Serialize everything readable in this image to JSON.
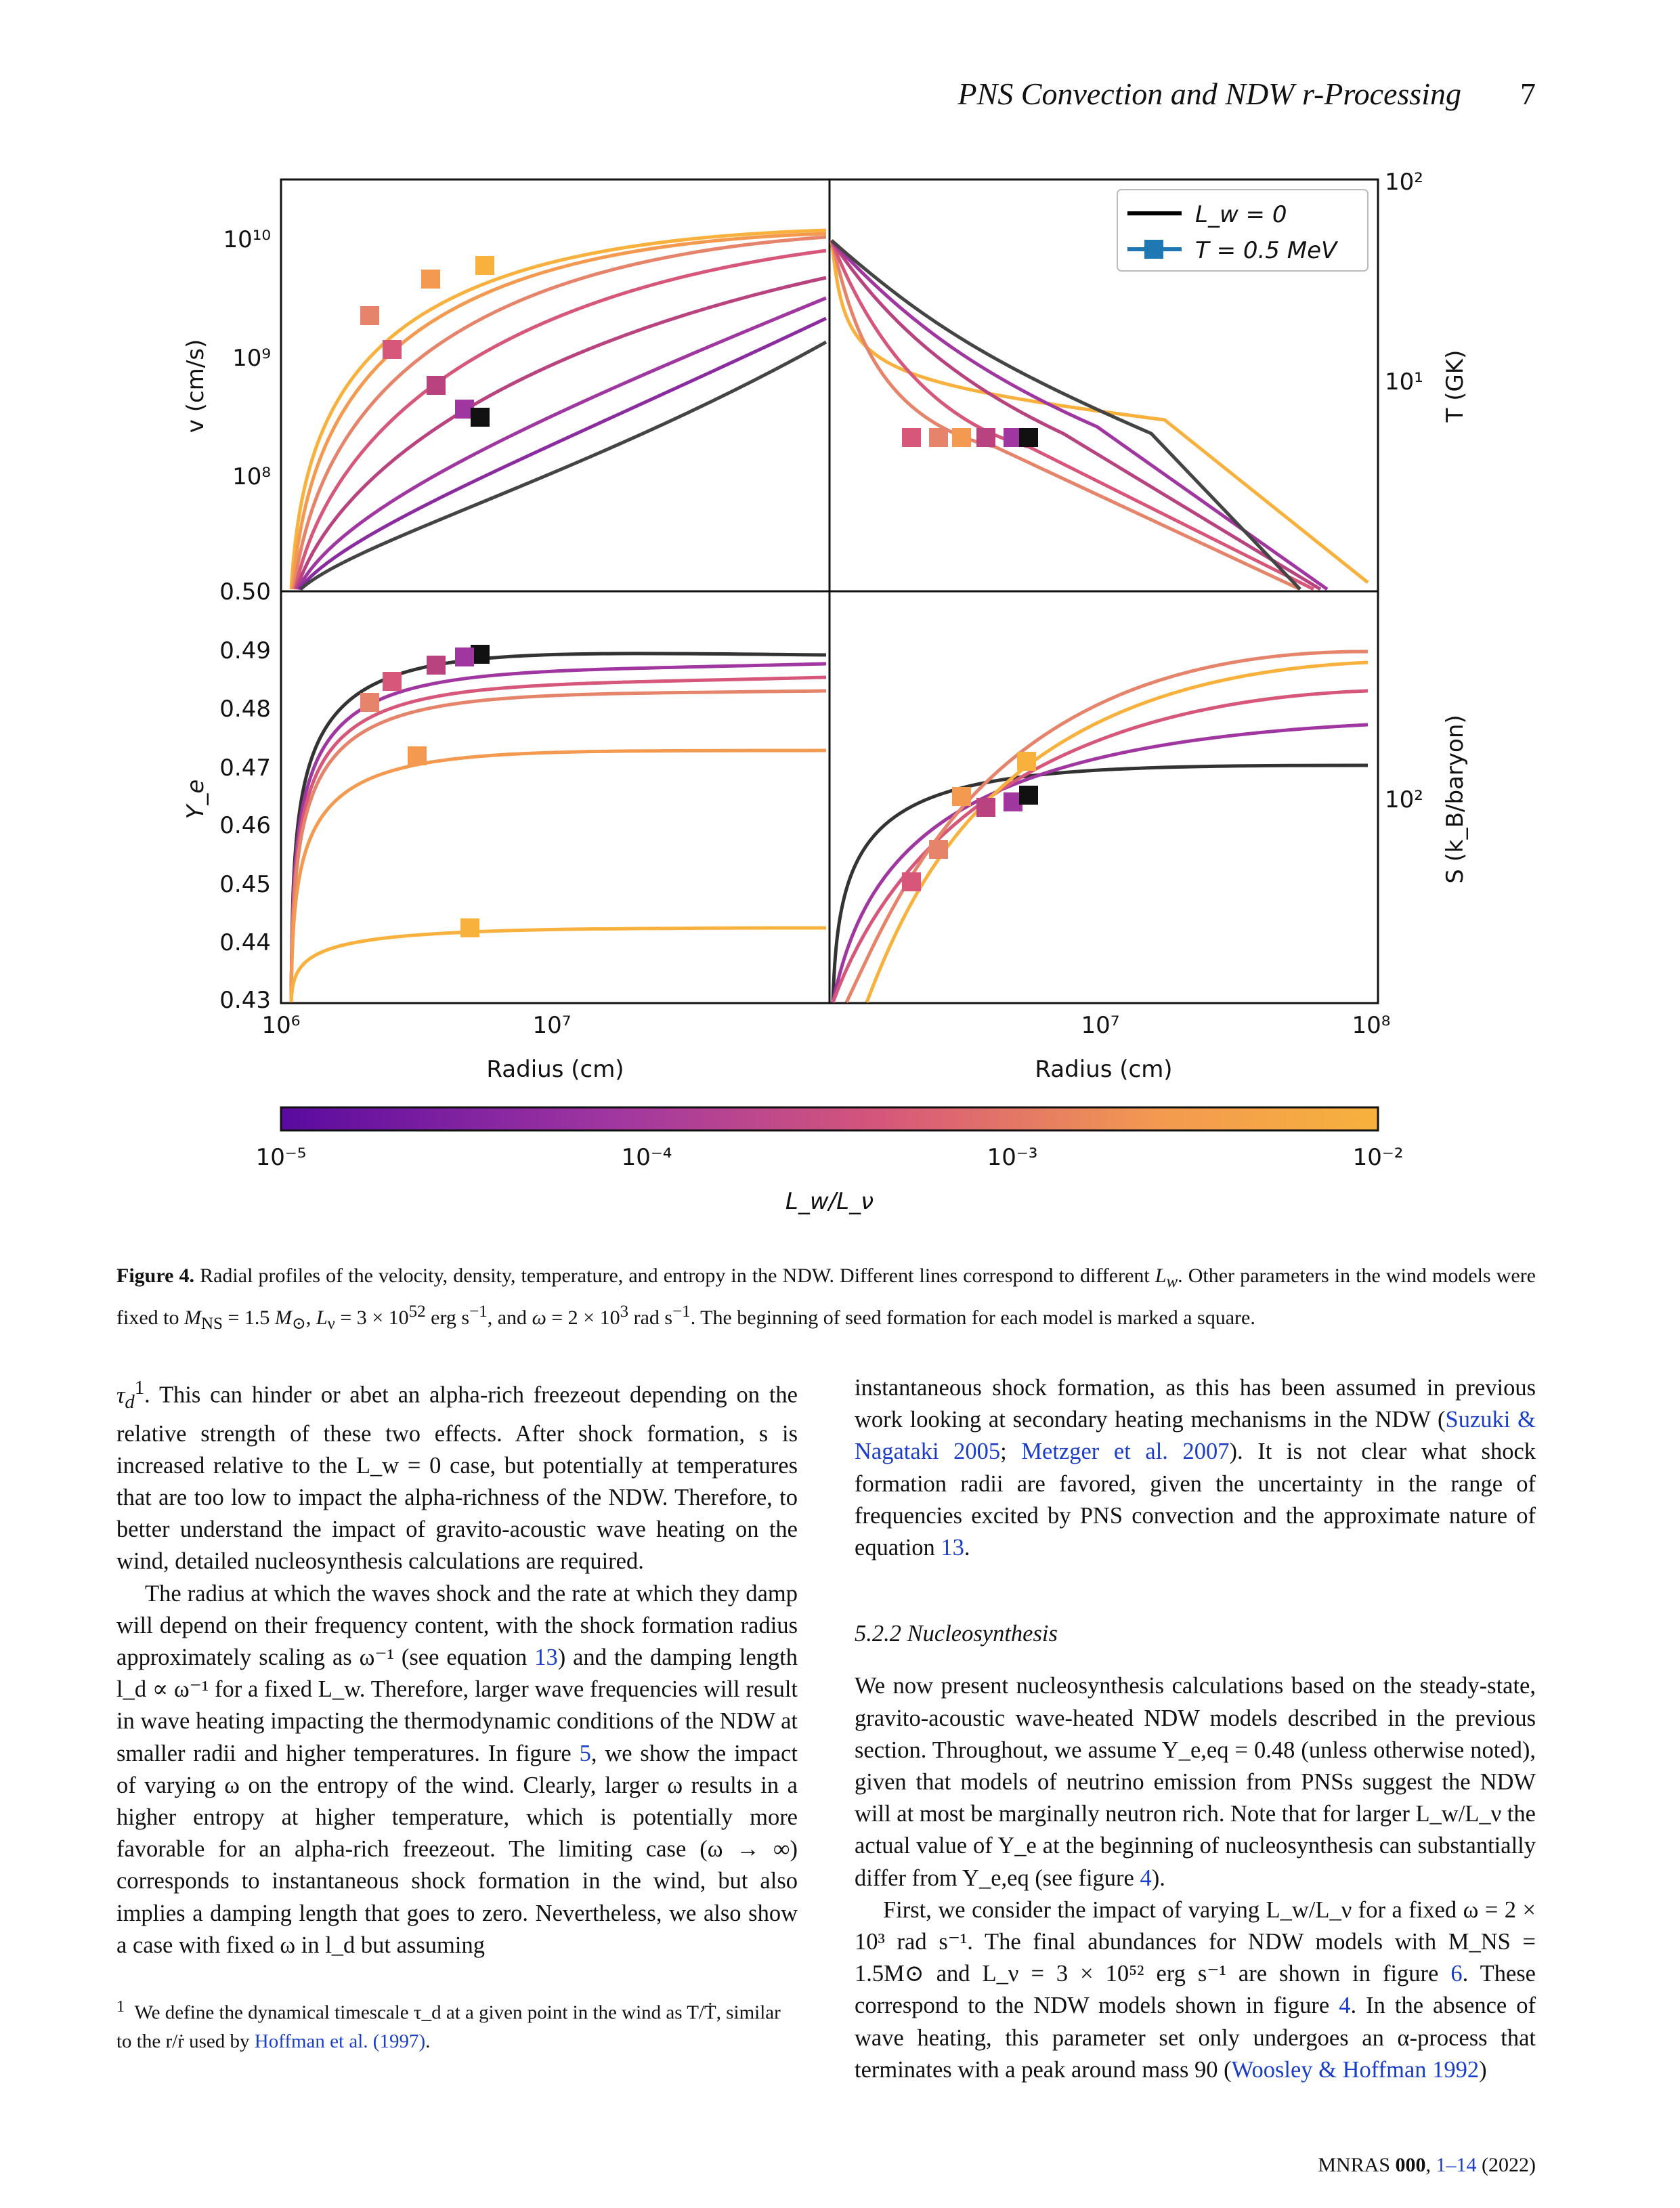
{
  "header": {
    "title": "PNS Convection and NDW r-Processing",
    "page": "7"
  },
  "figure": {
    "left_top": {
      "ylabel": "v (cm/s)",
      "yticks": [
        "10¹⁰",
        "10⁹",
        "10⁸"
      ]
    },
    "right_top": {
      "ylabel": "T (GK)",
      "yticks": [
        "10²",
        "10¹"
      ],
      "legend": [
        {
          "label": "L_w = 0",
          "color": "#000000"
        },
        {
          "label": "T = 0.5 MeV",
          "color": "#1f77b4"
        }
      ]
    },
    "left_bottom": {
      "ylabel": "Y_e",
      "yticks": [
        "0.50",
        "0.49",
        "0.48",
        "0.47",
        "0.46",
        "0.45",
        "0.44",
        "0.43"
      ],
      "xticks": [
        "10⁶",
        "10⁷"
      ],
      "xlabel": "Radius (cm)"
    },
    "right_bottom": {
      "ylabel": "S (k_B/baryon)",
      "yticks": [
        "10²"
      ],
      "xticks": [
        "10⁷",
        "10⁸"
      ],
      "xlabel": "Radius (cm)"
    },
    "colorbar": {
      "ticks": [
        "10⁻⁵",
        "10⁻⁴",
        "10⁻³",
        "10⁻²"
      ],
      "label": "L_w/L_ν",
      "colors": [
        "#5a0aa0",
        "#a036a0",
        "#d6577a",
        "#f39a50",
        "#f7b13c"
      ]
    }
  },
  "caption": {
    "label": "Figure 4.",
    "text1": " Radial profiles of the velocity, density, temperature, and entropy in the NDW. Different lines correspond to different ",
    "text2": ". Other parameters in the wind models were fixed to ",
    "text3": ". The beginning of seed formation for each model is marked a square."
  },
  "left_col": {
    "p1": ". This can hinder or abet an alpha-rich freezeout depending on the relative strength of these two effects. After shock formation, s is increased relative to the L_w = 0 case, but potentially at temperatures that are too low to impact the alpha-richness of the NDW. Therefore, to better understand the impact of gravito-acoustic wave heating on the wind, detailed nucleosynthesis calculations are required.",
    "p2a": "The radius at which the waves shock and the rate at which they damp will depend on their frequency content, with the shock formation radius approximately scaling as ω⁻¹ (see equation ",
    "p2_eq": "13",
    "p2b": ") and the damping length l_d ∝ ω⁻¹ for a fixed L_w. Therefore, larger wave frequencies will result in wave heating impacting the thermodynamic conditions of the NDW at smaller radii and higher temperatures. In figure ",
    "p2_fig": "5",
    "p2c": ", we show the impact of varying ω on the entropy of the wind. Clearly, larger ω results in a higher entropy at higher temperature, which is potentially more favorable for an alpha-rich freezeout. The limiting case (ω → ∞) corresponds to instantaneous shock formation in the wind, but also implies a damping length that goes to zero. Nevertheless, we also show a case with fixed ω in l_d but assuming"
  },
  "footnote": {
    "mark": "1",
    "text": "We define the dynamical timescale τ_d at a given point in the wind as T/Ṫ, similar to the r/ṙ used by ",
    "cite": "Hoffman et al. (1997)",
    "end": "."
  },
  "right_col": {
    "p1a": "instantaneous shock formation, as this has been assumed in previous work looking at secondary heating mechanisms in the NDW (",
    "p1_c1": "Suzuki & Nagataki 2005",
    "p1_c2": "Metzger et al. 2007",
    "p1b": "). It is not clear what shock formation radii are favored, given the uncertainty in the range of frequencies excited by PNS convection and the approximate nature of equation ",
    "p1_eq": "13",
    "section": "5.2.2 Nucleosynthesis",
    "p2a": "We now present nucleosynthesis calculations based on the steady-state, gravito-acoustic wave-heated NDW models described in the previous section. Throughout, we assume Y_e,eq = 0.48 (unless otherwise noted), given that models of neutrino emission from PNSs suggest the NDW will at most be marginally neutron rich. Note that for larger L_w/L_ν the actual value of Y_e at the beginning of nucleosynthesis can substantially differ from Y_e,eq (see figure ",
    "p2_fig": "4",
    "p3a": "First, we consider the impact of varying L_w/L_ν for a fixed ω = 2 × 10³ rad s⁻¹. The final abundances for NDW models with M_NS = 1.5M⊙ and L_ν = 3 × 10⁵² erg s⁻¹ are shown in figure ",
    "p3_fig6": "6",
    "p3b": ". These correspond to the NDW models shown in figure ",
    "p3_fig4": "4",
    "p3c": ". In the absence of wave heating, this parameter set only undergoes an α-process that terminates with a peak around mass 90 (",
    "p3_cite": "Woosley & Hoffman 1992",
    "p3d": ")"
  },
  "footer": {
    "journal": "MNRAS ",
    "vol": "000",
    "pages": "1–14",
    "year": " (2022)"
  }
}
